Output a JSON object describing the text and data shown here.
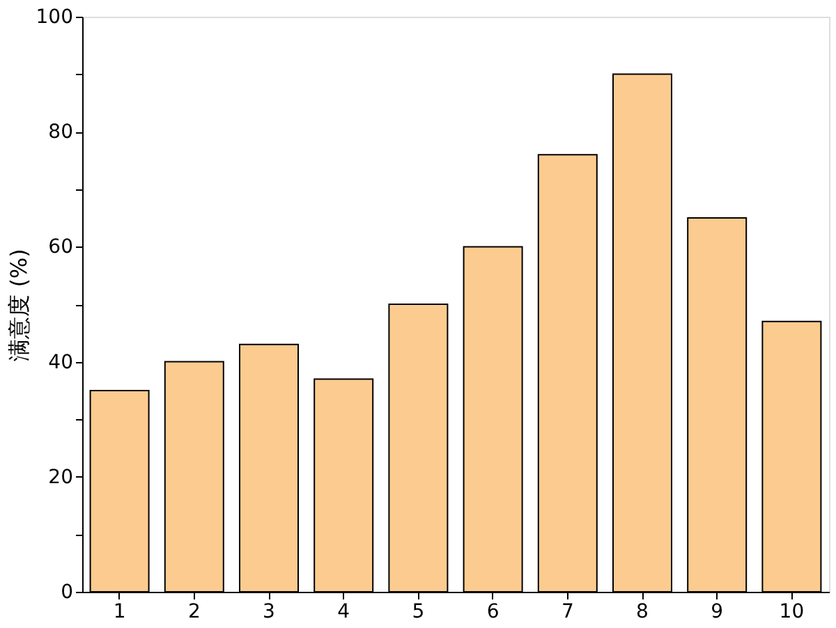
{
  "chart_data": {
    "type": "bar",
    "ylabel": "满意度 (%)",
    "categories": [
      "1",
      "2",
      "3",
      "4",
      "5",
      "6",
      "7",
      "8",
      "9",
      "10"
    ],
    "values": [
      35,
      40,
      43,
      37,
      50,
      60,
      76,
      90,
      65,
      47
    ],
    "color": "#fccb8f",
    "ylim": [
      0,
      100
    ],
    "yticks": [
      0,
      {
        "value": 10,
        "label": null
      },
      20,
      {
        "value": 30,
        "label": null
      },
      40,
      {
        "value": 50,
        "label": null
      },
      60,
      {
        "value": 70,
        "label": null
      },
      80,
      {
        "value": 90,
        "label": null
      },
      100
    ],
    "grid": false
  }
}
